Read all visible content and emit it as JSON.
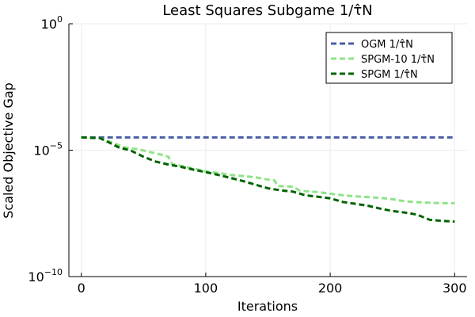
{
  "chart_data": {
    "type": "line",
    "title": "Least Squares Subgame 1/τ̂N",
    "xlabel": "Iterations",
    "ylabel": "Scaled Objective Gap",
    "xscale": "linear",
    "yscale": "log",
    "xlim": [
      -10,
      310
    ],
    "ylim": [
      1e-10,
      1
    ],
    "grid": true,
    "legend_position": "top-right",
    "x_ticks": [
      0,
      100,
      200,
      300
    ],
    "y_ticks": [
      {
        "value": 1e-10,
        "base": "10",
        "exp": "−10"
      },
      {
        "value": 1e-05,
        "base": "10",
        "exp": "−5"
      },
      {
        "value": 1,
        "base": "10",
        "exp": "0"
      }
    ],
    "series": [
      {
        "name": "OGM  1/τ̂N",
        "color": "#4a5fa8",
        "dash": "dashed",
        "points": [
          [
            0,
            3.2e-05
          ],
          [
            300,
            3.2e-05
          ]
        ]
      },
      {
        "name": "SPGM-10  1/τ̂N",
        "color": "#8fe388",
        "dash": "dashed",
        "points": [
          [
            0,
            3.2e-05
          ],
          [
            15,
            3e-05
          ],
          [
            25,
            2e-05
          ],
          [
            35,
            1.3e-05
          ],
          [
            45,
            1.1e-05
          ],
          [
            55,
            8.5e-06
          ],
          [
            65,
            6.5e-06
          ],
          [
            70,
            5.5e-06
          ],
          [
            73,
            2.8e-06
          ],
          [
            80,
            2.4e-06
          ],
          [
            90,
            1.9e-06
          ],
          [
            100,
            1.45e-06
          ],
          [
            110,
            1.25e-06
          ],
          [
            120,
            1.05e-06
          ],
          [
            130,
            9.5e-07
          ],
          [
            140,
            8.5e-07
          ],
          [
            150,
            6.8e-07
          ],
          [
            155,
            6.5e-07
          ],
          [
            158,
            3.8e-07
          ],
          [
            170,
            3.6e-07
          ],
          [
            175,
            2.6e-07
          ],
          [
            180,
            2.4e-07
          ],
          [
            190,
            2.2e-07
          ],
          [
            200,
            1.9e-07
          ],
          [
            210,
            1.65e-07
          ],
          [
            220,
            1.5e-07
          ],
          [
            230,
            1.4e-07
          ],
          [
            240,
            1.3e-07
          ],
          [
            250,
            1.15e-07
          ],
          [
            260,
            9.5e-08
          ],
          [
            270,
            8.8e-08
          ],
          [
            280,
            8.3e-08
          ],
          [
            290,
            8e-08
          ],
          [
            300,
            8e-08
          ]
        ]
      },
      {
        "name": "SPGM  1/τ̂N",
        "color": "#006400",
        "dash": "dashed",
        "points": [
          [
            0,
            3.2e-05
          ],
          [
            15,
            3e-05
          ],
          [
            20,
            2.3e-05
          ],
          [
            30,
            1.3e-05
          ],
          [
            40,
            9.5e-06
          ],
          [
            50,
            5.5e-06
          ],
          [
            60,
            3.5e-06
          ],
          [
            70,
            2.7e-06
          ],
          [
            80,
            2.2e-06
          ],
          [
            90,
            1.7e-06
          ],
          [
            100,
            1.35e-06
          ],
          [
            110,
            1.05e-06
          ],
          [
            120,
            8e-07
          ],
          [
            130,
            6e-07
          ],
          [
            140,
            4.3e-07
          ],
          [
            150,
            3.1e-07
          ],
          [
            160,
            2.6e-07
          ],
          [
            170,
            2.3e-07
          ],
          [
            180,
            1.65e-07
          ],
          [
            190,
            1.45e-07
          ],
          [
            200,
            1.25e-07
          ],
          [
            210,
            9e-08
          ],
          [
            220,
            7.6e-08
          ],
          [
            230,
            6.4e-08
          ],
          [
            240,
            4.9e-08
          ],
          [
            250,
            3.9e-08
          ],
          [
            260,
            3.4e-08
          ],
          [
            270,
            2.8e-08
          ],
          [
            280,
            1.75e-08
          ],
          [
            290,
            1.6e-08
          ],
          [
            300,
            1.5e-08
          ]
        ]
      }
    ]
  }
}
